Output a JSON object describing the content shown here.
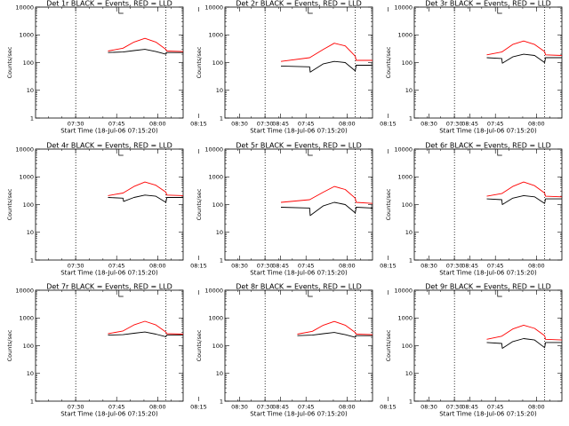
{
  "colors": {
    "events": "#000000",
    "lld": "#ff0000",
    "frame": "#000000"
  },
  "chart_data": [
    {
      "type": "line",
      "title": "Det 1r BLACK = Events, RED = LLD",
      "xlabel": "Start Time (18-Jul-06 07:15:20)",
      "ylabel": "Counts/sec",
      "yscale": "log",
      "ylim": [
        1,
        10000
      ],
      "xlim_min": [
        0,
        54
      ],
      "x_ticks": [
        "07:30",
        "07:45",
        "08:00",
        "08:15",
        "08:30",
        "08:45"
      ],
      "y_ticks": [
        "1",
        "10",
        "100",
        "1000",
        "10000"
      ],
      "vlines_min": [
        14.7,
        47.7
      ],
      "series": [
        {
          "name": "Events",
          "color": "#000000",
          "x_min": [
            26.5,
            32,
            36,
            40,
            44,
            47.7,
            48,
            54
          ],
          "values": [
            230,
            240,
            270,
            300,
            250,
            200,
            230,
            230
          ]
        },
        {
          "name": "LLD",
          "color": "#ff0000",
          "x_min": [
            26.5,
            32,
            36,
            40,
            44,
            47.7,
            48,
            54
          ],
          "values": [
            260,
            330,
            550,
            750,
            550,
            300,
            260,
            250
          ]
        }
      ]
    },
    {
      "type": "line",
      "title": "Det 2r BLACK = Events, RED = LLD",
      "xlabel": "Start Time (18-Jul-06 07:15:20)",
      "ylabel": "Counts/sec",
      "yscale": "log",
      "ylim": [
        1,
        10000
      ],
      "xlim_min": [
        0,
        54
      ],
      "x_ticks": [
        "07:30",
        "07:45",
        "08:00",
        "08:15",
        "08:30",
        "08:45"
      ],
      "y_ticks": [
        "1",
        "10",
        "100",
        "1000",
        "10000"
      ],
      "vlines_min": [
        14.7,
        47.7
      ],
      "series": [
        {
          "name": "Events",
          "color": "#000000",
          "x_min": [
            20.5,
            31,
            31.2,
            36,
            40,
            44,
            47.7,
            48,
            54
          ],
          "values": [
            75,
            70,
            45,
            90,
            110,
            100,
            50,
            80,
            80
          ]
        },
        {
          "name": "LLD",
          "color": "#ff0000",
          "x_min": [
            20.5,
            31,
            36,
            40,
            44,
            47.7,
            48,
            54
          ],
          "values": [
            110,
            150,
            300,
            500,
            400,
            170,
            120,
            120
          ]
        }
      ]
    },
    {
      "type": "line",
      "title": "Det 3r BLACK = Events, RED = LLD",
      "xlabel": "Start Time (18-Jul-06 07:15:20)",
      "ylabel": "Counts/sec",
      "yscale": "log",
      "ylim": [
        1,
        10000
      ],
      "xlim_min": [
        0,
        54
      ],
      "x_ticks": [
        "07:30",
        "07:45",
        "08:00",
        "08:15",
        "08:30",
        "08:45"
      ],
      "y_ticks": [
        "1",
        "10",
        "100",
        "1000",
        "10000"
      ],
      "vlines_min": [
        14.7,
        47.7
      ],
      "series": [
        {
          "name": "Events",
          "color": "#000000",
          "x_min": [
            26.5,
            32,
            32.2,
            36,
            40,
            44,
            47.7,
            48,
            54
          ],
          "values": [
            150,
            140,
            95,
            160,
            200,
            180,
            100,
            150,
            150
          ]
        },
        {
          "name": "LLD",
          "color": "#ff0000",
          "x_min": [
            26.5,
            32,
            36,
            40,
            44,
            47.7,
            48,
            54
          ],
          "values": [
            190,
            240,
            450,
            600,
            450,
            250,
            190,
            180
          ]
        }
      ]
    },
    {
      "type": "line",
      "title": "Det 4r BLACK = Events, RED = LLD",
      "xlabel": "Start Time (18-Jul-06 07:15:20)",
      "ylabel": "Counts/sec",
      "yscale": "log",
      "ylim": [
        1,
        10000
      ],
      "xlim_min": [
        0,
        54
      ],
      "x_ticks": [
        "07:30",
        "07:45",
        "08:00",
        "08:15",
        "08:30",
        "08:45"
      ],
      "y_ticks": [
        "1",
        "10",
        "100",
        "1000",
        "10000"
      ],
      "vlines_min": [
        14.7,
        47.7
      ],
      "series": [
        {
          "name": "Events",
          "color": "#000000",
          "x_min": [
            26.5,
            32,
            32.2,
            36,
            40,
            44,
            47.7,
            48,
            54
          ],
          "values": [
            180,
            170,
            130,
            180,
            220,
            200,
            120,
            180,
            180
          ]
        },
        {
          "name": "LLD",
          "color": "#ff0000",
          "x_min": [
            26.5,
            32,
            36,
            40,
            44,
            47.7,
            48,
            54
          ],
          "values": [
            210,
            260,
            450,
            650,
            500,
            280,
            220,
            210
          ]
        }
      ]
    },
    {
      "type": "line",
      "title": "Det 5r BLACK = Events, RED = LLD",
      "xlabel": "Start Time (18-Jul-06 07:15:20)",
      "ylabel": "Counts/sec",
      "yscale": "log",
      "ylim": [
        1,
        10000
      ],
      "xlim_min": [
        0,
        54
      ],
      "x_ticks": [
        "07:30",
        "07:45",
        "08:00",
        "08:15",
        "08:30",
        "08:45"
      ],
      "y_ticks": [
        "1",
        "10",
        "100",
        "1000",
        "10000"
      ],
      "vlines_min": [
        14.7,
        47.7
      ],
      "series": [
        {
          "name": "Events",
          "color": "#000000",
          "x_min": [
            20.5,
            31,
            31.2,
            36,
            40,
            44,
            47.7,
            48,
            54
          ],
          "values": [
            80,
            75,
            40,
            90,
            120,
            100,
            50,
            80,
            75
          ]
        },
        {
          "name": "LLD",
          "color": "#ff0000",
          "x_min": [
            20.5,
            31,
            36,
            40,
            44,
            47.7,
            48,
            54
          ],
          "values": [
            120,
            150,
            280,
            450,
            350,
            170,
            120,
            110
          ]
        }
      ]
    },
    {
      "type": "line",
      "title": "Det 6r BLACK = Events, RED = LLD",
      "xlabel": "Start Time (18-Jul-06 07:15:20)",
      "ylabel": "Counts/sec",
      "yscale": "log",
      "ylim": [
        1,
        10000
      ],
      "xlim_min": [
        0,
        54
      ],
      "x_ticks": [
        "07:30",
        "07:45",
        "08:00",
        "08:15",
        "08:30",
        "08:45"
      ],
      "y_ticks": [
        "1",
        "10",
        "100",
        "1000",
        "10000"
      ],
      "vlines_min": [
        14.7,
        47.7
      ],
      "series": [
        {
          "name": "Events",
          "color": "#000000",
          "x_min": [
            26.5,
            32,
            32.2,
            36,
            40,
            44,
            47.7,
            48,
            54
          ],
          "values": [
            160,
            150,
            100,
            170,
            210,
            190,
            110,
            160,
            160
          ]
        },
        {
          "name": "LLD",
          "color": "#ff0000",
          "x_min": [
            26.5,
            32,
            36,
            40,
            44,
            47.7,
            48,
            54
          ],
          "values": [
            200,
            250,
            450,
            650,
            480,
            260,
            200,
            190
          ]
        }
      ]
    },
    {
      "type": "line",
      "title": "Det 7r BLACK = Events, RED = LLD",
      "xlabel": "Start Time (18-Jul-06 07:15:20)",
      "ylabel": "Counts/sec",
      "yscale": "log",
      "ylim": [
        1,
        10000
      ],
      "xlim_min": [
        0,
        54
      ],
      "x_ticks": [
        "07:30",
        "07:45",
        "08:00",
        "08:15",
        "08:30",
        "08:45"
      ],
      "y_ticks": [
        "1",
        "10",
        "100",
        "1000",
        "10000"
      ],
      "vlines_min": [
        14.7,
        47.7
      ],
      "series": [
        {
          "name": "Events",
          "color": "#000000",
          "x_min": [
            26.5,
            32,
            36,
            40,
            44,
            47.7,
            48,
            54
          ],
          "values": [
            240,
            250,
            280,
            310,
            260,
            210,
            240,
            240
          ]
        },
        {
          "name": "LLD",
          "color": "#ff0000",
          "x_min": [
            26.5,
            32,
            36,
            40,
            44,
            47.7,
            48,
            54
          ],
          "values": [
            270,
            340,
            560,
            760,
            560,
            310,
            270,
            260
          ]
        }
      ]
    },
    {
      "type": "line",
      "title": "Det 8r BLACK = Events, RED = LLD",
      "xlabel": "Start Time (18-Jul-06 07:15:20)",
      "ylabel": "Counts/sec",
      "yscale": "log",
      "ylim": [
        1,
        10000
      ],
      "xlim_min": [
        0,
        54
      ],
      "x_ticks": [
        "07:30",
        "07:45",
        "08:00",
        "08:15",
        "08:30",
        "08:45"
      ],
      "y_ticks": [
        "1",
        "10",
        "100",
        "1000",
        "10000"
      ],
      "vlines_min": [
        14.7,
        47.7
      ],
      "series": [
        {
          "name": "Events",
          "color": "#000000",
          "x_min": [
            26.5,
            32,
            36,
            40,
            44,
            47.7,
            48,
            54
          ],
          "values": [
            230,
            240,
            270,
            300,
            250,
            200,
            230,
            230
          ]
        },
        {
          "name": "LLD",
          "color": "#ff0000",
          "x_min": [
            26.5,
            32,
            36,
            40,
            44,
            47.7,
            48,
            54
          ],
          "values": [
            260,
            330,
            550,
            750,
            550,
            300,
            260,
            250
          ]
        }
      ]
    },
    {
      "type": "line",
      "title": "Det 9r BLACK = Events, RED = LLD",
      "xlabel": "Start Time (18-Jul-06 07:15:20)",
      "ylabel": "Counts/sec",
      "yscale": "log",
      "ylim": [
        1,
        10000
      ],
      "xlim_min": [
        0,
        54
      ],
      "x_ticks": [
        "07:30",
        "07:45",
        "08:00",
        "08:15",
        "08:30",
        "08:45"
      ],
      "y_ticks": [
        "1",
        "10",
        "100",
        "1000",
        "10000"
      ],
      "vlines_min": [
        14.7,
        47.7
      ],
      "series": [
        {
          "name": "Events",
          "color": "#000000",
          "x_min": [
            26.5,
            32,
            32.2,
            36,
            40,
            44,
            47.7,
            48,
            54
          ],
          "values": [
            130,
            120,
            80,
            140,
            180,
            160,
            85,
            130,
            130
          ]
        },
        {
          "name": "LLD",
          "color": "#ff0000",
          "x_min": [
            26.5,
            32,
            36,
            40,
            44,
            47.7,
            48,
            54
          ],
          "values": [
            170,
            220,
            400,
            550,
            420,
            230,
            170,
            160
          ]
        }
      ]
    }
  ]
}
